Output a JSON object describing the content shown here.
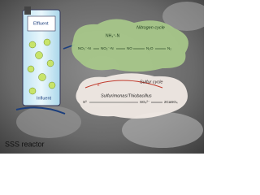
{
  "reactor": {
    "label": "SSS reactor",
    "effluent": "Effluent",
    "influent": "Influent"
  },
  "nitrogen_cycle": {
    "title": "Nitrogen cycle",
    "nodes": [
      "NH₄⁺-N",
      "NO₃⁻-N",
      "NO₂⁻-N",
      "NO",
      "N₂O",
      "N₂"
    ]
  },
  "sulfur_cycle": {
    "title": "Sulfur cycle",
    "electron": "e⁻",
    "bacteria": "Sulfurimonas/Thiobacillus",
    "nodes": [
      "S⁰",
      "SO₄²⁻",
      "2CaSO₄"
    ]
  }
}
